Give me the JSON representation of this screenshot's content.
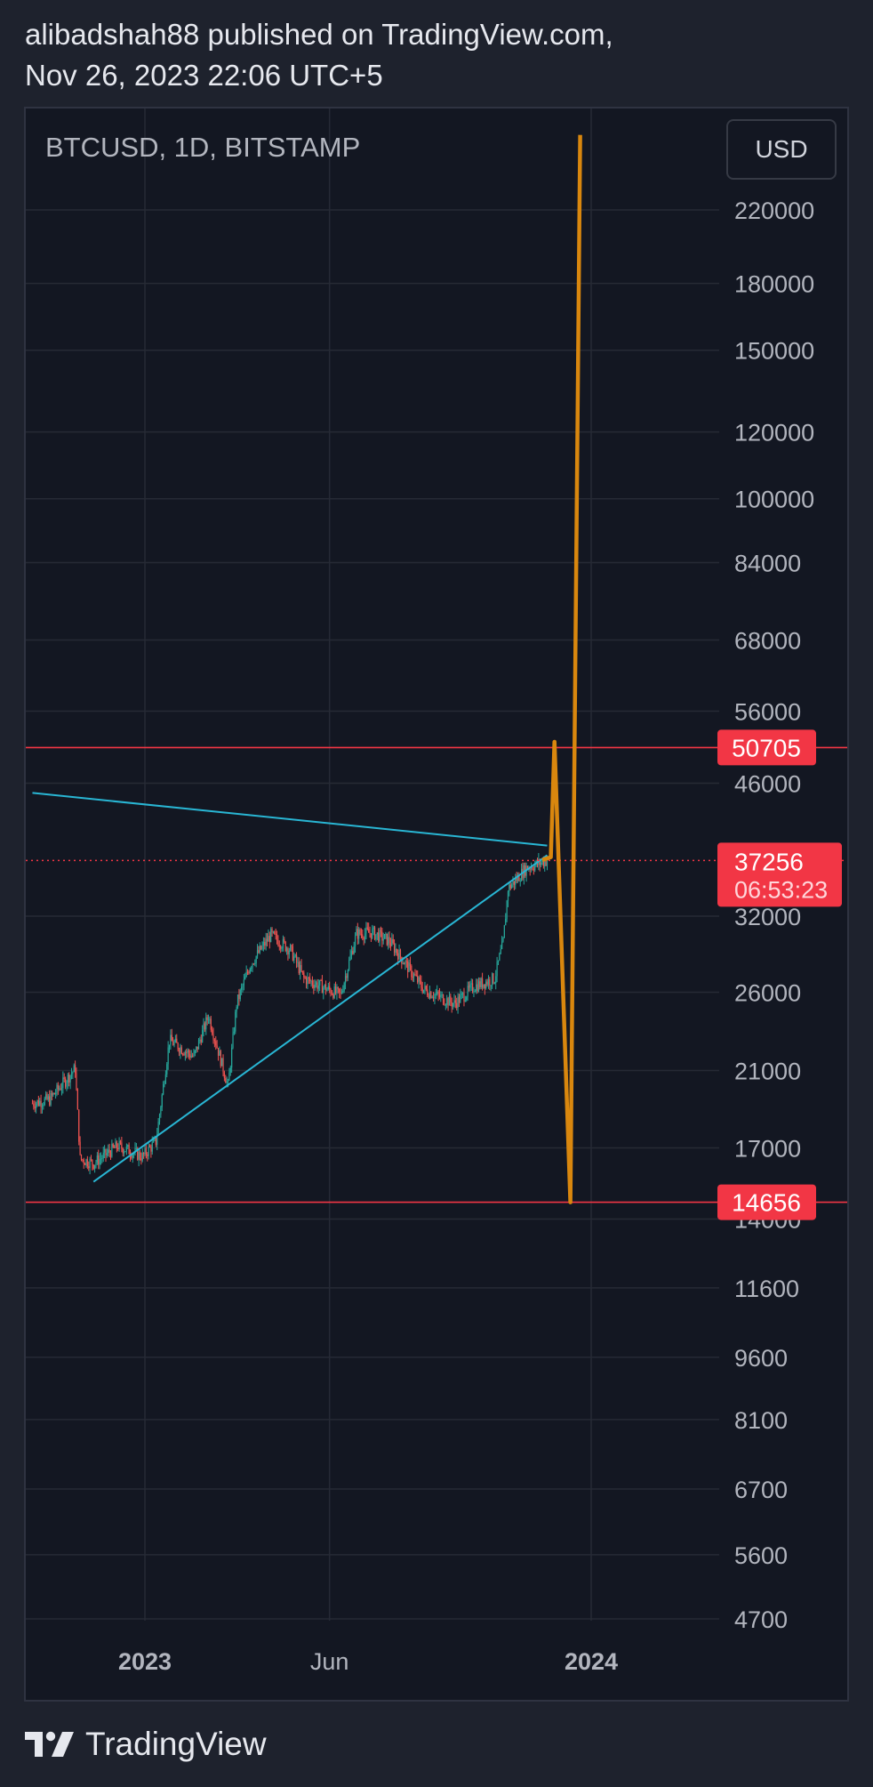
{
  "header": {
    "line1": "alibadshah88 published on TradingView.com,",
    "line2": "Nov 26, 2023 22:06 UTC+5"
  },
  "chart": {
    "symbol": "BTCUSD, 1D, BITSTAMP",
    "currency_button": "USD"
  },
  "footer": {
    "brand": "TradingView",
    "logo_icon": "tradingview-logo-icon"
  },
  "colors": {
    "background": "#131722",
    "grid": "#262a35",
    "candle_up": "#26a69a",
    "candle_down": "#ef5350",
    "trendline": "#29b6d4",
    "projection": "#d9870e",
    "level_line": "#f23645"
  },
  "chart_data": {
    "type": "candlestick",
    "symbol": "BTCUSD",
    "timeframe": "1D",
    "exchange": "BITSTAMP",
    "y_scale": "log",
    "y_ticks": [
      220000,
      180000,
      150000,
      120000,
      100000,
      84000,
      68000,
      56000,
      46000,
      32000,
      26000,
      21000,
      17000,
      14000,
      11600,
      9600,
      8100,
      6700,
      5600,
      4700
    ],
    "x_ticks": [
      "2023",
      "Jun",
      "2024"
    ],
    "x_range": [
      "2022-10-01",
      "2024-05-01"
    ],
    "y_range": [
      4400,
      250000
    ],
    "price_path": [
      [
        "2022-10-01",
        19200
      ],
      [
        "2022-10-15",
        19400
      ],
      [
        "2022-11-05",
        21100
      ],
      [
        "2022-11-09",
        16500
      ],
      [
        "2022-11-20",
        16300
      ],
      [
        "2022-12-10",
        17100
      ],
      [
        "2022-12-30",
        16600
      ],
      [
        "2023-01-10",
        17300
      ],
      [
        "2023-01-21",
        22800
      ],
      [
        "2023-02-10",
        21800
      ],
      [
        "2023-02-22",
        24400
      ],
      [
        "2023-03-10",
        20100
      ],
      [
        "2023-03-17",
        25200
      ],
      [
        "2023-03-28",
        28000
      ],
      [
        "2023-04-14",
        30400
      ],
      [
        "2023-04-30",
        29200
      ],
      [
        "2023-05-11",
        27000
      ],
      [
        "2023-06-10",
        25800
      ],
      [
        "2023-06-23",
        30500
      ],
      [
        "2023-07-06",
        30600
      ],
      [
        "2023-07-20",
        29900
      ],
      [
        "2023-08-17",
        26200
      ],
      [
        "2023-09-11",
        25200
      ],
      [
        "2023-09-27",
        26400
      ],
      [
        "2023-10-14",
        27000
      ],
      [
        "2023-10-21",
        29800
      ],
      [
        "2023-10-25",
        34500
      ],
      [
        "2023-11-09",
        36500
      ],
      [
        "2023-11-26",
        37256
      ]
    ],
    "levels": [
      {
        "value": 50705,
        "label": "50705"
      },
      {
        "value": 14656,
        "label": "14656"
      }
    ],
    "current_price": {
      "value": 37256,
      "label": "37256",
      "countdown": "06:53:23"
    },
    "trendlines": [
      {
        "points": [
          [
            "2022-10-01",
            44800
          ],
          [
            "2023-11-26",
            38800
          ]
        ]
      },
      {
        "points": [
          [
            "2022-11-20",
            15500
          ],
          [
            "2023-11-26",
            37800
          ]
        ]
      }
    ],
    "projection": {
      "points": [
        [
          "2023-11-22",
          37300
        ],
        [
          "2023-11-29",
          37600
        ],
        [
          "2023-12-02",
          51500
        ],
        [
          "2023-12-15",
          14656
        ],
        [
          "2023-12-23",
          270000
        ]
      ]
    },
    "title": "",
    "xlabel": "",
    "ylabel": ""
  }
}
